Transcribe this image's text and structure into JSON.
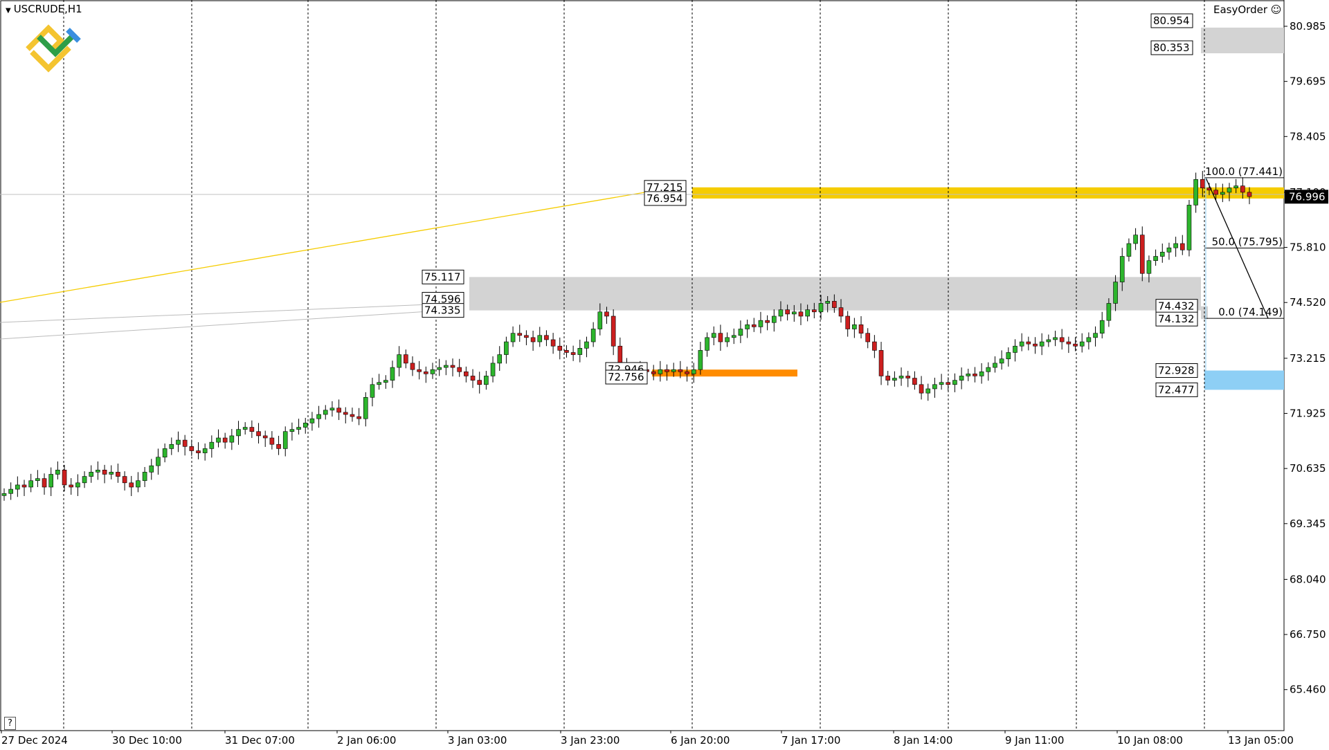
{
  "header": {
    "symbol": "USCRUDE,H1",
    "dropdown_icon": "triangle-down-icon"
  },
  "widget": {
    "label": "EasyOrder",
    "icon": "smiley-icon"
  },
  "help": {
    "label": "?"
  },
  "colors": {
    "bull": "#2db52d",
    "bear": "#cc1f1f",
    "wick": "#000000",
    "gold_zone": "#f5cc00",
    "gray_zone": "#d3d3d3",
    "orange_zone": "#ff8c00",
    "blue_zone": "#8ecff5",
    "price_tag_bg": "#000000"
  },
  "chart_data": {
    "type": "candlestick",
    "y_ticks": [
      "80.985",
      "79.695",
      "78.405",
      "77.100",
      "75.810",
      "74.520",
      "73.215",
      "71.925",
      "70.635",
      "69.345",
      "68.040",
      "66.750",
      "65.460"
    ],
    "ylim": [
      64.5,
      81.6
    ],
    "x_ticks": [
      "27 Dec 2024",
      "30 Dec 10:00",
      "31 Dec 07:00",
      "2 Jan 06:00",
      "3 Jan 03:00",
      "3 Jan 23:00",
      "6 Jan 20:00",
      "7 Jan 17:00",
      "8 Jan 14:00",
      "9 Jan 11:00",
      "10 Jan 08:00",
      "13 Jan 05:00"
    ],
    "current_price": "76.996",
    "levels": [
      {
        "name": "upper-gray-zone",
        "labels": [
          "80.954",
          "80.353"
        ],
        "top": 80.954,
        "bottom": 80.353
      },
      {
        "name": "gold-zone",
        "labels": [
          "77.215",
          "76.954"
        ],
        "top": 77.215,
        "bottom": 76.954
      },
      {
        "name": "gray-zone",
        "labels": [
          "75.117",
          "74.596",
          "74.335"
        ],
        "top": 75.117,
        "bottom": 74.335
      },
      {
        "name": "right-gray-zone",
        "labels": [
          "74.432",
          "74.132"
        ],
        "top": 74.432,
        "bottom": 74.132
      },
      {
        "name": "orange-zone",
        "labels": [
          "72.946",
          "72.756"
        ],
        "top": 72.946,
        "bottom": 72.756
      },
      {
        "name": "blue-zone",
        "labels": [
          "72.928",
          "72.477"
        ],
        "top": 72.928,
        "bottom": 72.477
      }
    ],
    "fibonacci": [
      {
        "label": "100.0 (77.441)",
        "price": 77.441
      },
      {
        "label": "50.0 (75.795)",
        "price": 75.795
      },
      {
        "label": "0.0 (74.149)",
        "price": 74.149
      }
    ],
    "closes": [
      70.05,
      70.15,
      70.25,
      70.2,
      70.35,
      70.4,
      70.2,
      70.5,
      70.6,
      70.25,
      70.2,
      70.3,
      70.45,
      70.55,
      70.6,
      70.5,
      70.55,
      70.45,
      70.3,
      70.2,
      70.35,
      70.55,
      70.7,
      70.9,
      71.1,
      71.2,
      71.3,
      71.15,
      71.05,
      71.0,
      71.1,
      71.25,
      71.35,
      71.25,
      71.4,
      71.55,
      71.6,
      71.5,
      71.4,
      71.35,
      71.2,
      71.1,
      71.5,
      71.55,
      71.6,
      71.7,
      71.8,
      71.9,
      72.0,
      72.05,
      71.95,
      71.9,
      71.85,
      71.8,
      72.3,
      72.6,
      72.65,
      72.7,
      73.0,
      73.3,
      73.1,
      72.95,
      72.9,
      72.85,
      72.95,
      73.0,
      73.05,
      73.0,
      72.9,
      72.8,
      72.7,
      72.6,
      72.8,
      73.1,
      73.3,
      73.6,
      73.8,
      73.75,
      73.7,
      73.6,
      73.75,
      73.65,
      73.5,
      73.4,
      73.35,
      73.3,
      73.45,
      73.6,
      73.9,
      74.3,
      74.2,
      73.5,
      73.1,
      72.85,
      72.9,
      72.95,
      72.9,
      72.85,
      72.95,
      72.9,
      72.95,
      72.9,
      72.85,
      72.95,
      73.4,
      73.7,
      73.8,
      73.6,
      73.7,
      73.75,
      73.9,
      74.0,
      73.95,
      74.1,
      74.05,
      74.2,
      74.35,
      74.25,
      74.3,
      74.2,
      74.35,
      74.3,
      74.5,
      74.55,
      74.4,
      74.2,
      73.9,
      74.0,
      73.8,
      73.6,
      73.4,
      72.8,
      72.7,
      72.75,
      72.8,
      72.75,
      72.6,
      72.4,
      72.5,
      72.6,
      72.65,
      72.6,
      72.7,
      72.8,
      72.85,
      72.8,
      72.9,
      73.0,
      73.1,
      73.2,
      73.35,
      73.5,
      73.6,
      73.55,
      73.5,
      73.6,
      73.65,
      73.7,
      73.6,
      73.55,
      73.5,
      73.6,
      73.7,
      73.8,
      74.1,
      74.5,
      75.0,
      75.6,
      75.9,
      76.1,
      75.2,
      75.5,
      75.6,
      75.7,
      75.8,
      75.9,
      75.75,
      76.8,
      77.4,
      77.2,
      77.15,
      77.05,
      77.1,
      77.2,
      77.25,
      77.1,
      77.0
    ]
  }
}
